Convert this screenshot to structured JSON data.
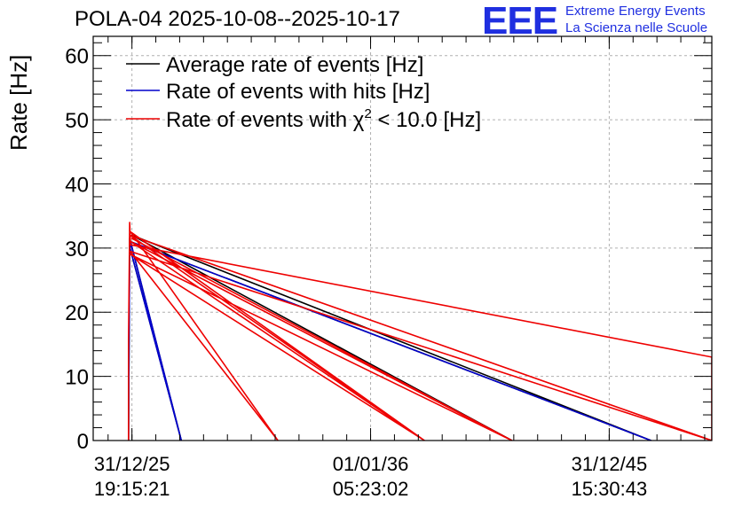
{
  "header": {
    "title": "POLA-04 2025-10-08--2025-10-17",
    "logo_mark": "EEE",
    "logo_line1": "Extreme Energy Events",
    "logo_line2": "La Scienza nelle Scuole"
  },
  "colors": {
    "accent": "#1f2fe0",
    "series_average": "#000000",
    "series_hits": "#0000cc",
    "series_chi2": "#ee0000",
    "grid": "#b0b0b0"
  },
  "chart_data": {
    "type": "line",
    "title": "POLA-04 2025-10-08--2025-10-17",
    "xlabel": "",
    "ylabel": "Rate [Hz]",
    "ylim": [
      0,
      63
    ],
    "yticks": [
      0,
      10,
      20,
      30,
      40,
      50,
      60
    ],
    "xlim": [
      -5.1,
      76.3
    ],
    "xticks": [
      {
        "value": 0,
        "line1": "31/12/25",
        "line2": "19:15:21"
      },
      {
        "value": 31.4,
        "line1": "01/01/36",
        "line2": "05:23:02"
      },
      {
        "value": 62.8,
        "line1": "31/12/45",
        "line2": "15:30:43"
      }
    ],
    "grid": true,
    "legend_position": "top-left",
    "legend": [
      {
        "label": "Average rate of events [Hz]",
        "color": "#000000"
      },
      {
        "label": "Rate of events with hits [Hz]",
        "color": "#0000cc"
      },
      {
        "label": "Rate of events with χ² < 10.0 [Hz]",
        "color": "#ee0000",
        "label_main": "Rate of events with χ",
        "label_sup": "2",
        "label_tail": " < 10.0 [Hz]"
      }
    ],
    "series": [
      {
        "name": "Average rate of events [Hz]",
        "color": "#000000",
        "x": [
          -0.45,
          -0.3,
          6.5,
          -0.25,
          -0.2,
          68.3,
          0.0,
          50.0
        ],
        "y": [
          0,
          31.5,
          0,
          30.0,
          31.0,
          0,
          32.0,
          0
        ]
      },
      {
        "name": "Rate of events with hits [Hz]",
        "color": "#0000cc",
        "x": [
          -0.45,
          -0.3,
          6.5,
          -0.25,
          -0.2,
          68.3
        ],
        "y": [
          0,
          31.5,
          0,
          30.0,
          31.0,
          0
        ]
      },
      {
        "name": "Rate of events with χ² < 10.0 [Hz]",
        "color": "#ee0000",
        "x": [
          -0.45,
          -0.45,
          -0.3,
          -0.2,
          76.3,
          76.3,
          -0.25,
          19.2,
          19.2,
          -0.15,
          38.5,
          38.5,
          -0.15,
          50.0,
          50.0,
          0.0,
          50.0,
          50.0,
          -0.2,
          38.5,
          38.5,
          -0.25,
          76.3
        ],
        "y": [
          0,
          15.5,
          34.0,
          30.5,
          13.0,
          0,
          29.5,
          0,
          0,
          32.5,
          0,
          0,
          31.0,
          0,
          0,
          31.5,
          0,
          0,
          29.0,
          0,
          0,
          32.0,
          0
        ]
      }
    ]
  }
}
